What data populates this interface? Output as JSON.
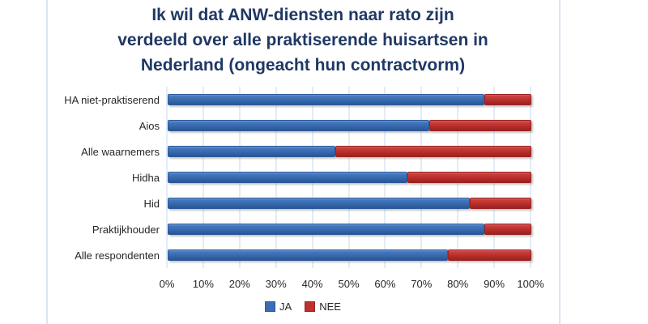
{
  "title": {
    "full": "Ik wil dat ANW-diensten naar rato zijn verdeeld over alle praktiserende huisartsen in Nederland (ongeacht hun contractvorm)",
    "lines": [
      "Ik wil dat ANW-diensten naar rato zijn",
      "verdeeld over alle praktiserende huisartsen in",
      "Nederland (ongeacht hun contractvorm)"
    ],
    "color": "#1f3864"
  },
  "chart_data": {
    "type": "bar",
    "orientation": "horizontal",
    "stacked": true,
    "title": "Ik wil dat ANW-diensten naar rato zijn verdeeld over alle praktiserende huisartsen in Nederland (ongeacht hun contractvorm)",
    "categories": [
      "HA niet-praktiserend",
      "Aios",
      "Alle waarnemers",
      "Hidha",
      "Hid",
      "Praktijkhouder",
      "Alle respondenten"
    ],
    "categories_order": "top-to-bottom",
    "series": [
      {
        "name": "JA",
        "color": "#3a6db4",
        "values": [
          87,
          72,
          46,
          66,
          83,
          87,
          77
        ]
      },
      {
        "name": "NEE",
        "color": "#bf312e",
        "values": [
          13,
          28,
          54,
          34,
          17,
          13,
          23
        ]
      }
    ],
    "x_ticks": [
      "0%",
      "10%",
      "20%",
      "30%",
      "40%",
      "50%",
      "60%",
      "70%",
      "80%",
      "90%",
      "100%"
    ],
    "xlim": [
      0,
      100
    ],
    "xlabel": "",
    "ylabel": "",
    "grid": "vertical",
    "gridline_color": "#c5d9f1",
    "legend_position": "bottom"
  }
}
